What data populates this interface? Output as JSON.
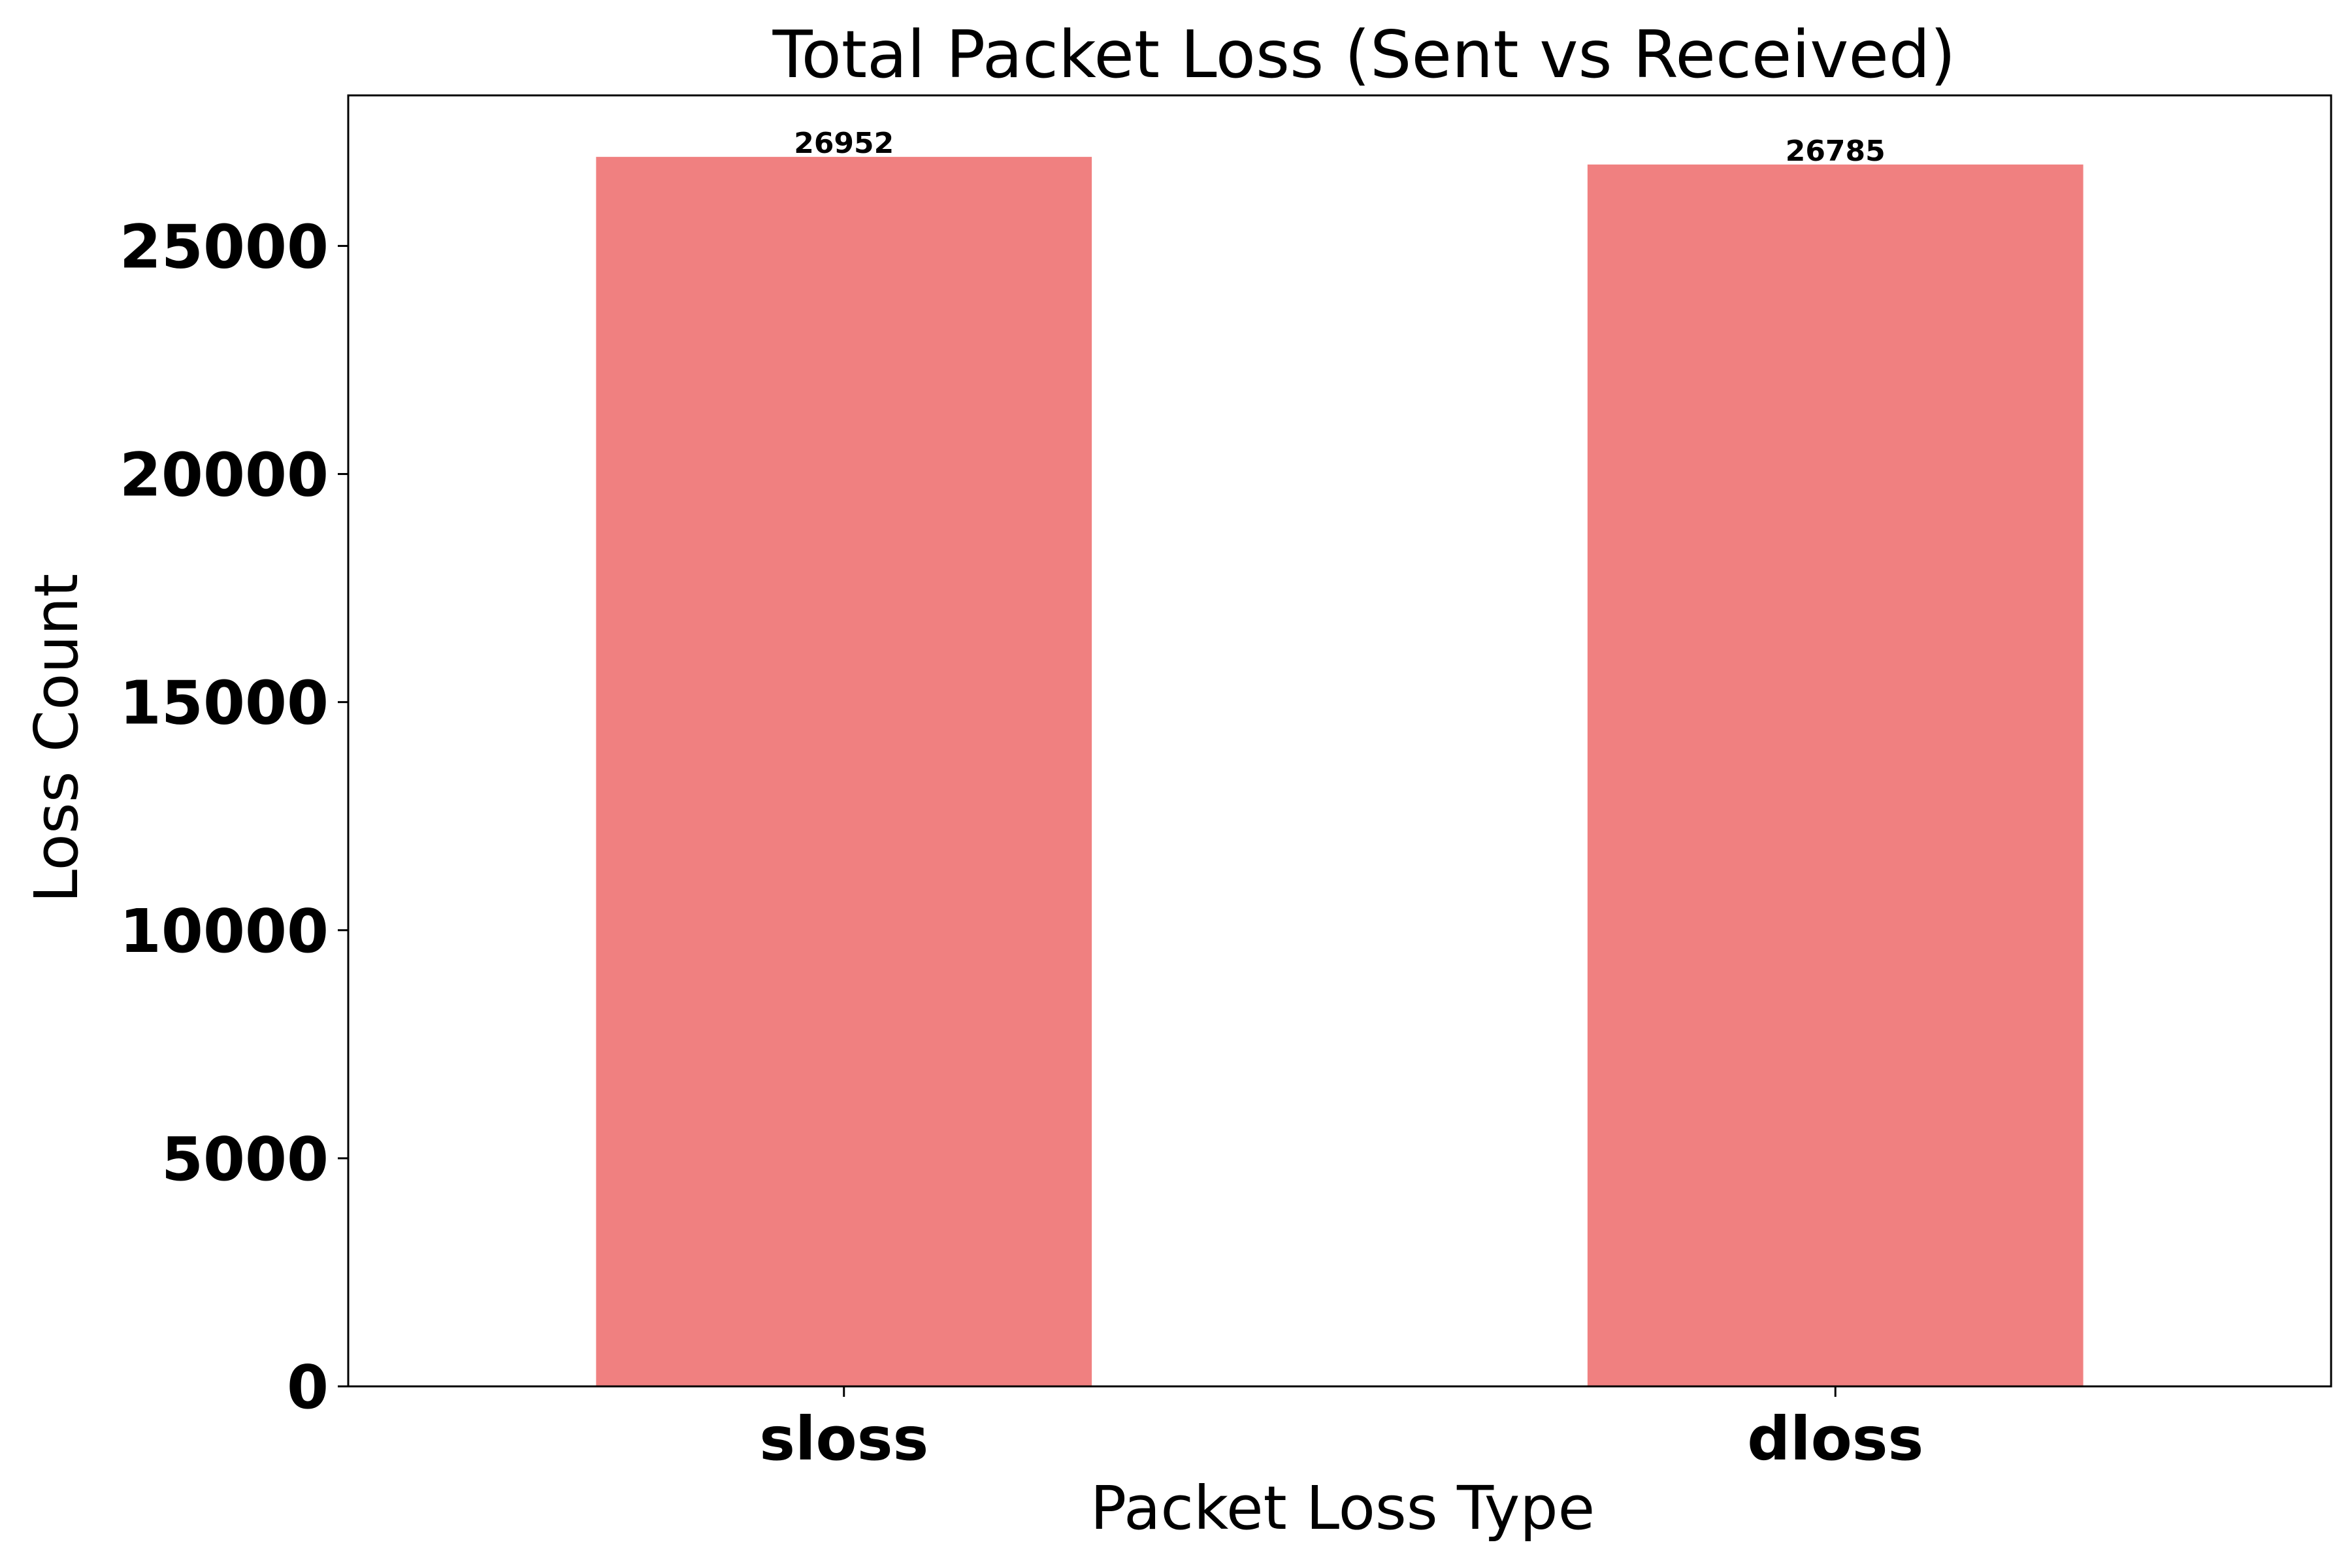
{
  "chart_data": {
    "type": "bar",
    "title": "Total Packet Loss (Sent vs Received)",
    "xlabel": "Packet Loss Type",
    "ylabel": "Loss Count",
    "categories": [
      "sloss",
      "dloss"
    ],
    "values": [
      26952,
      26785
    ],
    "data_labels": [
      "26952",
      "26785"
    ],
    "yticks": [
      0,
      5000,
      10000,
      15000,
      20000,
      25000
    ],
    "ytick_labels": [
      "0",
      "5000",
      "10000",
      "15000",
      "20000",
      "25000"
    ],
    "ylim": [
      0,
      28300
    ],
    "grid": false,
    "legend": "none",
    "bar_color": "#f08080"
  }
}
